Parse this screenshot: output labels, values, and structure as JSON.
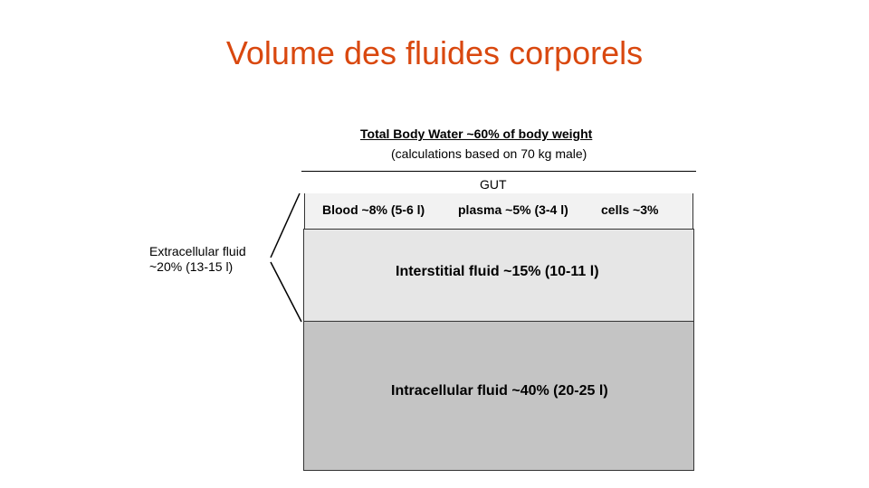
{
  "slide": {
    "title": "Volume des fluides corporels"
  },
  "diagram": {
    "title": "Total Body Water  ~60% of body weight",
    "subtitle": "(calculations based on 70 kg male)",
    "gut": "GUT",
    "blood_row": {
      "blood": "Blood  ~8% (5-6 l)",
      "plasma": "plasma ~5% (3-4 l)",
      "cells": "cells  ~3%"
    },
    "interstitial": "Interstitial fluid  ~15% (10-11 l)",
    "intracellular": "Intracellular fluid  ~40% (20-25 l)",
    "extracellular": {
      "line1": "Extracellular fluid",
      "line2": "~20% (13-15 l)"
    },
    "colors": {
      "title": "#d9480f",
      "blood_fill": "#f2f2f2",
      "interstitial_fill": "#e6e6e6",
      "intracellular_fill": "#c4c4c4"
    }
  }
}
